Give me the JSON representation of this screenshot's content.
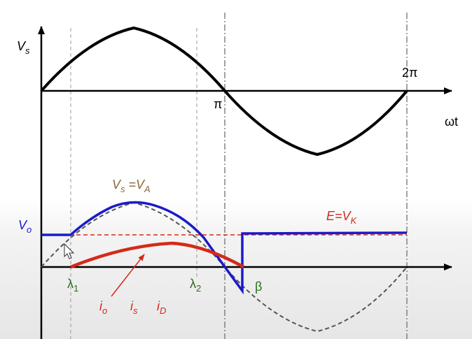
{
  "labels": {
    "vs": "V",
    "vs_sub": "s",
    "two_pi": "2π",
    "pi": "π",
    "omega_t": "ωt",
    "vs_eq_va_v1": "V",
    "vs_eq_va_s": "s",
    "vs_eq_va_mid": " =V",
    "vs_eq_va_a": "A",
    "vo": "V",
    "vo_sub": "o",
    "e_eq_vk": "E=V",
    "e_eq_vk_sub": "K",
    "lambda1": "λ",
    "lambda1_sub": "1",
    "lambda2": "λ",
    "lambda2_sub": "2",
    "beta": "β",
    "io": "i",
    "io_sub": "o",
    "is": "i",
    "is_sub": "s",
    "id": "i",
    "id_sub": "D"
  },
  "colors": {
    "axis": "#000000",
    "source": "#000000",
    "output": "#1a1acc",
    "current": "#d42a1a",
    "battery_line": "#d42a1a",
    "dashed_sine": "#555555",
    "guide": "#999999",
    "green_label": "#2e6b1e",
    "tan_label": "#8a6a3a"
  }
}
